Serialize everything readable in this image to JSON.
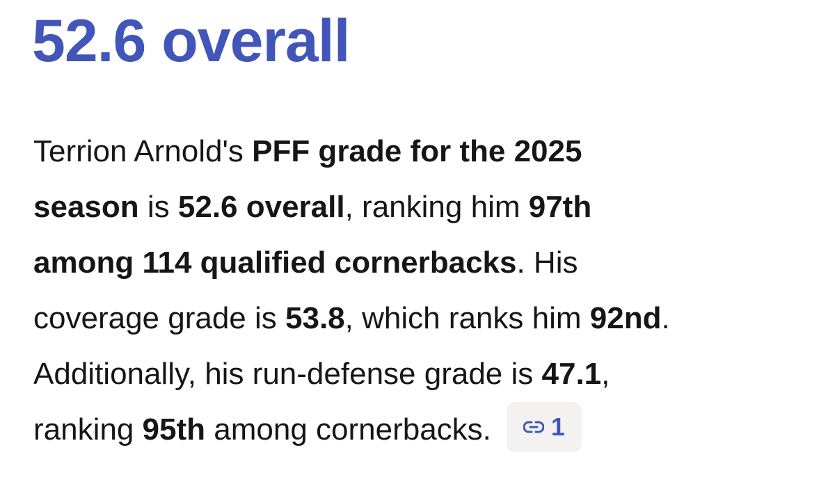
{
  "heading": "52.6 overall",
  "paragraph": {
    "lines": [
      {
        "runs": [
          {
            "text": "Terrion Arnold's ",
            "bold": false
          },
          {
            "text": "PFF grade for the 2025",
            "bold": true
          }
        ]
      },
      {
        "runs": [
          {
            "text": "season",
            "bold": true
          },
          {
            "text": " is ",
            "bold": false
          },
          {
            "text": "52.6 overall",
            "bold": true
          },
          {
            "text": ", ranking him ",
            "bold": false
          },
          {
            "text": "97th",
            "bold": true
          }
        ]
      },
      {
        "runs": [
          {
            "text": "among 114 qualified cornerbacks",
            "bold": true
          },
          {
            "text": ". His",
            "bold": false
          }
        ]
      },
      {
        "runs": [
          {
            "text": "coverage grade is ",
            "bold": false
          },
          {
            "text": "53.8",
            "bold": true
          },
          {
            "text": ", which ranks him ",
            "bold": false
          },
          {
            "text": "92nd",
            "bold": true
          },
          {
            "text": ".",
            "bold": false
          }
        ]
      },
      {
        "runs": [
          {
            "text": "Additionally, his run-defense grade is ",
            "bold": false
          },
          {
            "text": "47.1",
            "bold": true
          },
          {
            "text": ",",
            "bold": false
          }
        ]
      },
      {
        "runs": [
          {
            "text": "ranking ",
            "bold": false
          },
          {
            "text": "95th",
            "bold": true
          },
          {
            "text": " among cornerbacks.",
            "bold": false
          }
        ]
      }
    ]
  },
  "citation": {
    "count": "1"
  }
}
